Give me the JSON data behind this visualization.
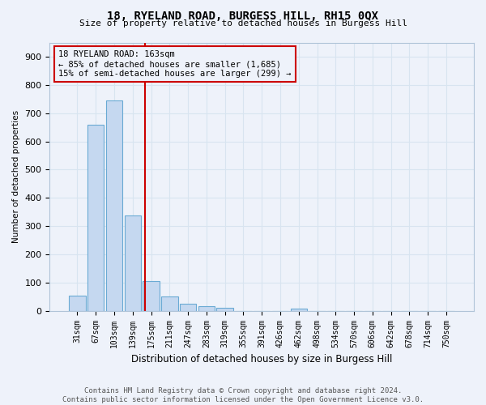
{
  "title": "18, RYELAND ROAD, BURGESS HILL, RH15 0QX",
  "subtitle": "Size of property relative to detached houses in Burgess Hill",
  "xlabel": "Distribution of detached houses by size in Burgess Hill",
  "ylabel": "Number of detached properties",
  "bar_labels": [
    "31sqm",
    "67sqm",
    "103sqm",
    "139sqm",
    "175sqm",
    "211sqm",
    "247sqm",
    "283sqm",
    "319sqm",
    "355sqm",
    "391sqm",
    "426sqm",
    "462sqm",
    "498sqm",
    "534sqm",
    "570sqm",
    "606sqm",
    "642sqm",
    "678sqm",
    "714sqm",
    "750sqm"
  ],
  "bar_values": [
    55,
    660,
    745,
    338,
    105,
    52,
    25,
    15,
    12,
    0,
    0,
    0,
    8,
    0,
    0,
    0,
    0,
    0,
    0,
    0,
    0
  ],
  "bar_color": "#c5d8f0",
  "bar_edge_color": "#6aaad4",
  "annotation_title": "18 RYELAND ROAD: 163sqm",
  "annotation_line1": "← 85% of detached houses are smaller (1,685)",
  "annotation_line2": "15% of semi-detached houses are larger (299) →",
  "vline_color": "#cc0000",
  "annotation_box_color": "#cc0000",
  "ylim": [
    0,
    950
  ],
  "yticks": [
    0,
    100,
    200,
    300,
    400,
    500,
    600,
    700,
    800,
    900
  ],
  "footer_line1": "Contains HM Land Registry data © Crown copyright and database right 2024.",
  "footer_line2": "Contains public sector information licensed under the Open Government Licence v3.0.",
  "bg_color": "#eef2fa",
  "grid_color": "#d8e4f0"
}
